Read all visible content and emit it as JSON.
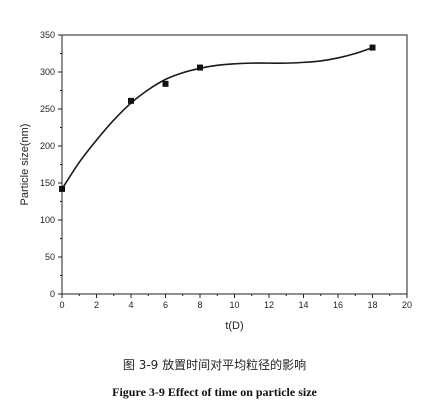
{
  "chart_data": {
    "type": "scatter",
    "xlabel": "t(D)",
    "ylabel": "Particle size(nm)",
    "xlim": [
      0,
      20
    ],
    "ylim": [
      0,
      350
    ],
    "x_ticks": [
      0,
      2,
      4,
      6,
      8,
      10,
      12,
      14,
      16,
      18,
      20
    ],
    "y_ticks": [
      0,
      50,
      100,
      150,
      200,
      250,
      300,
      350
    ],
    "points": [
      {
        "x": 0,
        "y": 142
      },
      {
        "x": 4,
        "y": 261
      },
      {
        "x": 6,
        "y": 284
      },
      {
        "x": 8,
        "y": 306
      },
      {
        "x": 18,
        "y": 333
      }
    ],
    "fit_curve": [
      {
        "x": 0,
        "y": 142
      },
      {
        "x": 1,
        "y": 178
      },
      {
        "x": 2,
        "y": 208
      },
      {
        "x": 3,
        "y": 235
      },
      {
        "x": 4,
        "y": 258
      },
      {
        "x": 5,
        "y": 276
      },
      {
        "x": 6,
        "y": 290
      },
      {
        "x": 7,
        "y": 299
      },
      {
        "x": 8,
        "y": 305
      },
      {
        "x": 9,
        "y": 309
      },
      {
        "x": 10,
        "y": 311
      },
      {
        "x": 11,
        "y": 312
      },
      {
        "x": 12,
        "y": 312
      },
      {
        "x": 13,
        "y": 312
      },
      {
        "x": 14,
        "y": 313
      },
      {
        "x": 15,
        "y": 315
      },
      {
        "x": 16,
        "y": 319
      },
      {
        "x": 17,
        "y": 325
      },
      {
        "x": 18,
        "y": 333
      }
    ],
    "grid": false,
    "line_color": "#1a1a1a",
    "marker": "square"
  },
  "caption": {
    "zh": "图 3-9 放置时间对平均粒径的影响",
    "en": "Figure 3-9 Effect of time on particle size"
  }
}
